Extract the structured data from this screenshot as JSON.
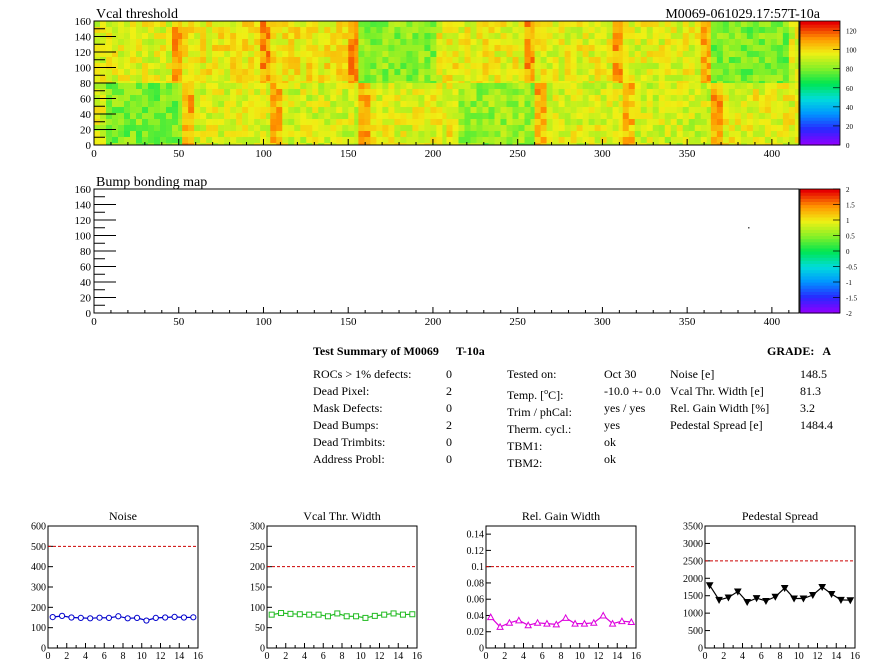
{
  "header": {
    "heatmap_title": "Vcal threshold",
    "module_id": "M0069-061029.17:57T-10a",
    "bump_title": "Bump bonding map"
  },
  "colors": {
    "noise": "#0000cc",
    "vcal": "#22bb22",
    "gain": "#dd00dd",
    "pedestal": "#000000",
    "limit_line": "#cc0000"
  },
  "heatmap_axes": {
    "x_ticks": [
      "0",
      "50",
      "100",
      "150",
      "200",
      "250",
      "300",
      "350",
      "400"
    ],
    "y_ticks": [
      "0",
      "20",
      "40",
      "60",
      "80",
      "100",
      "120",
      "140",
      "160"
    ],
    "x_range": [
      0,
      416
    ],
    "y_range": [
      0,
      160
    ]
  },
  "vcal_scale": [
    "0",
    "20",
    "40",
    "60",
    "80",
    "100",
    "120"
  ],
  "bump_scale": [
    "-2",
    "-1.5",
    "-1",
    "-0.5",
    "0",
    "0.5",
    "1",
    "1.5",
    "2"
  ],
  "summary": {
    "title": "Test Summary of M0069",
    "temp_label": "T-10a",
    "grade_label": "GRADE:",
    "grade_value": "A",
    "left": [
      {
        "label": "ROCs > 1% defects:",
        "value": "0"
      },
      {
        "label": "Dead Pixel:",
        "value": "2"
      },
      {
        "label": "Mask Defects:",
        "value": "0"
      },
      {
        "label": "Dead Bumps:",
        "value": "2"
      },
      {
        "label": "Dead Trimbits:",
        "value": "0"
      },
      {
        "label": "Address Probl:",
        "value": "0"
      }
    ],
    "middle": [
      {
        "label": "Tested on:",
        "value": "Oct 30"
      },
      {
        "label": "Temp. [",
        "sup": "o",
        "label_end": "C]:",
        "value": "-10.0 +- 0.0"
      },
      {
        "label": "Trim / phCal:",
        "value": "yes / yes"
      },
      {
        "label": "Therm. cycl.:",
        "value": "yes"
      },
      {
        "label": "TBM1:",
        "value": "ok"
      },
      {
        "label": "TBM2:",
        "value": "ok"
      }
    ],
    "right": [
      {
        "label": "Noise [e]",
        "value": "148.5"
      },
      {
        "label": "Vcal Thr. Width [e]",
        "value": "81.3"
      },
      {
        "label": "Rel. Gain Width [%]",
        "value": "3.2"
      },
      {
        "label": "Pedestal Spread [e]",
        "value": "1484.4"
      }
    ]
  },
  "chart_data": [
    {
      "type": "heatmap",
      "title": "Vcal threshold",
      "xlim": [
        0,
        416
      ],
      "ylim": [
        0,
        160
      ],
      "zlim": [
        0,
        130
      ],
      "roc_grid": {
        "columns": 8,
        "rows": 2
      },
      "roc_mean_values": [
        [
          95,
          98,
          99,
          82,
          97,
          96,
          95,
          80
        ],
        [
          80,
          94,
          93,
          95,
          84,
          94,
          92,
          96
        ]
      ],
      "note_rows": "first row = top half (y 80-160), second row = bottom half (y 0-80)"
    },
    {
      "type": "heatmap",
      "title": "Bump bonding map",
      "xlim": [
        0,
        416
      ],
      "ylim": [
        0,
        160
      ],
      "zlim": [
        -2,
        2
      ]
    },
    {
      "type": "line",
      "title": "Noise",
      "x": [
        0,
        1,
        2,
        3,
        4,
        5,
        6,
        7,
        8,
        9,
        10,
        11,
        12,
        13,
        14,
        15
      ],
      "values": [
        152,
        158,
        150,
        148,
        146,
        149,
        148,
        156,
        146,
        148,
        135,
        148,
        150,
        153,
        150,
        151
      ],
      "xlim": [
        0,
        16
      ],
      "ylim": [
        0,
        600
      ],
      "limit": 500,
      "y_ticks": [
        "0",
        "100",
        "200",
        "300",
        "400",
        "500",
        "600"
      ],
      "x_ticks": [
        "0",
        "2",
        "4",
        "6",
        "8",
        "10",
        "12",
        "14",
        "16"
      ],
      "marker": "circle"
    },
    {
      "type": "line",
      "title": "Vcal Thr. Width",
      "x": [
        0,
        1,
        2,
        3,
        4,
        5,
        6,
        7,
        8,
        9,
        10,
        11,
        12,
        13,
        14,
        15
      ],
      "values": [
        82,
        86,
        84,
        83,
        82,
        82,
        78,
        85,
        78,
        78,
        74,
        79,
        82,
        85,
        82,
        83
      ],
      "xlim": [
        0,
        16
      ],
      "ylim": [
        0,
        300
      ],
      "limit": 200,
      "y_ticks": [
        "0",
        "50",
        "100",
        "150",
        "200",
        "250",
        "300"
      ],
      "x_ticks": [
        "0",
        "2",
        "4",
        "6",
        "8",
        "10",
        "12",
        "14",
        "16"
      ],
      "marker": "square"
    },
    {
      "type": "line",
      "title": "Rel. Gain Width",
      "x": [
        0,
        1,
        2,
        3,
        4,
        5,
        6,
        7,
        8,
        9,
        10,
        11,
        12,
        13,
        14,
        15
      ],
      "values": [
        0.038,
        0.026,
        0.031,
        0.034,
        0.028,
        0.031,
        0.03,
        0.029,
        0.037,
        0.03,
        0.03,
        0.031,
        0.04,
        0.03,
        0.033,
        0.032
      ],
      "xlim": [
        0,
        16
      ],
      "ylim": [
        0,
        0.15
      ],
      "limit": 0.1,
      "y_ticks": [
        "0",
        "0.02",
        "0.04",
        "0.06",
        "0.08",
        "0.1",
        "0.12",
        "0.14"
      ],
      "x_ticks": [
        "0",
        "2",
        "4",
        "6",
        "8",
        "10",
        "12",
        "14",
        "16"
      ],
      "marker": "triangle-up"
    },
    {
      "type": "line",
      "title": "Pedestal Spread",
      "x": [
        0,
        1,
        2,
        3,
        4,
        5,
        6,
        7,
        8,
        9,
        10,
        11,
        12,
        13,
        14,
        15
      ],
      "values": [
        1800,
        1380,
        1450,
        1620,
        1320,
        1430,
        1350,
        1470,
        1720,
        1420,
        1420,
        1520,
        1750,
        1550,
        1380,
        1370
      ],
      "xlim": [
        0,
        16
      ],
      "ylim": [
        0,
        3500
      ],
      "limit": 2500,
      "y_ticks": [
        "0",
        "500",
        "1000",
        "1500",
        "2000",
        "2500",
        "3000",
        "3500"
      ],
      "x_ticks": [
        "0",
        "2",
        "4",
        "6",
        "8",
        "10",
        "12",
        "14",
        "16"
      ],
      "marker": "triangle-down"
    }
  ]
}
